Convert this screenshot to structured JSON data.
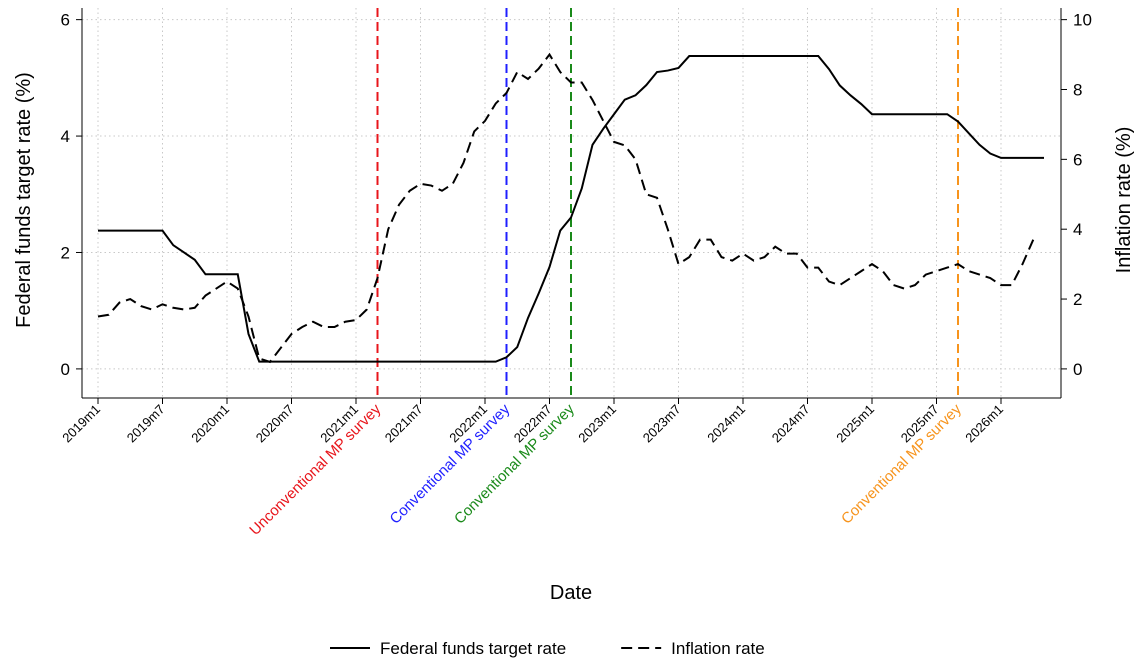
{
  "chart_data": {
    "type": "line",
    "y_label": "Federal funds target rate (%)",
    "y2_label": "Inflation rate (%)",
    "x_label": "Date",
    "categories": [
      "2019m1",
      null,
      null,
      null,
      null,
      null,
      "2019m7",
      null,
      null,
      null,
      null,
      null,
      "2020m1",
      null,
      null,
      null,
      null,
      null,
      "2020m7",
      null,
      null,
      null,
      null,
      null,
      "2021m1",
      null,
      null,
      null,
      null,
      null,
      "2021m7",
      null,
      null,
      null,
      null,
      null,
      "2022m1",
      null,
      null,
      null,
      null,
      null,
      "2022m7",
      null,
      null,
      null,
      null,
      null,
      "2023m1",
      null,
      null,
      null,
      null,
      null,
      "2023m7",
      null,
      null,
      null,
      null,
      null,
      "2024m1",
      null,
      null,
      null,
      null,
      null,
      "2024m7",
      null,
      null,
      null,
      null,
      null,
      "2025m1",
      null,
      null,
      null,
      null,
      null,
      "2025m7",
      null,
      null,
      null,
      null,
      null,
      "2026m1",
      null,
      null,
      null,
      null
    ],
    "series": [
      {
        "name": "Federal funds target rate",
        "color": "#000000",
        "style": "solid",
        "axis": "y",
        "values": [
          2.375,
          2.375,
          2.375,
          2.375,
          2.375,
          2.375,
          2.375,
          2.125,
          2.0,
          1.875,
          1.625,
          1.625,
          1.625,
          1.625,
          0.6,
          0.125,
          0.125,
          0.125,
          0.125,
          0.125,
          0.125,
          0.125,
          0.125,
          0.125,
          0.125,
          0.125,
          0.125,
          0.125,
          0.125,
          0.125,
          0.125,
          0.125,
          0.125,
          0.125,
          0.125,
          0.125,
          0.125,
          0.125,
          0.2,
          0.375,
          0.875,
          1.3,
          1.75,
          2.375,
          2.6,
          3.1,
          3.85,
          4.125,
          4.375,
          4.625,
          4.7,
          4.875,
          5.1,
          5.125,
          5.17,
          5.375,
          5.375,
          5.375,
          5.375,
          5.375,
          5.375,
          5.375,
          5.375,
          5.375,
          5.375,
          5.375,
          5.375,
          5.375,
          5.15,
          4.87,
          4.7,
          4.55,
          4.375,
          4.375,
          4.375,
          4.375,
          4.375,
          4.375,
          4.375,
          4.375,
          4.25,
          4.05,
          3.85,
          3.7,
          3.625,
          3.625,
          3.625,
          3.625,
          3.625
        ]
      },
      {
        "name": "Inflation rate",
        "color": "#000000",
        "style": "dashed",
        "axis": "y2",
        "values": [
          1.5,
          1.55,
          1.9,
          2.0,
          1.8,
          1.7,
          1.85,
          1.75,
          1.7,
          1.75,
          2.1,
          2.3,
          2.5,
          2.3,
          1.5,
          0.3,
          0.2,
          0.6,
          1.0,
          1.2,
          1.35,
          1.2,
          1.2,
          1.35,
          1.4,
          1.7,
          2.6,
          4.0,
          4.7,
          5.1,
          5.3,
          5.25,
          5.1,
          5.3,
          5.9,
          6.8,
          7.1,
          7.6,
          7.9,
          8.5,
          8.3,
          8.6,
          9.0,
          8.5,
          8.2,
          8.2,
          7.7,
          7.1,
          6.5,
          6.4,
          6.0,
          5.0,
          4.9,
          4.0,
          3.0,
          3.2,
          3.7,
          3.7,
          3.2,
          3.1,
          3.3,
          3.1,
          3.2,
          3.5,
          3.3,
          3.3,
          2.9,
          2.9,
          2.5,
          2.4,
          2.6,
          2.8,
          3.0,
          2.8,
          2.4,
          2.3,
          2.4,
          2.7,
          2.8,
          2.9,
          3.0,
          2.8,
          2.7,
          2.6,
          2.4,
          2.4,
          3.0,
          3.7,
          null
        ]
      }
    ],
    "ylim": [
      -0.5,
      6.2
    ],
    "yticks": [
      0,
      2,
      4,
      6
    ],
    "y2lim": [
      -0.8333,
      10.3333
    ],
    "y2ticks": [
      0,
      2,
      4,
      6,
      8,
      10
    ],
    "grid": true,
    "annotations": [
      {
        "x": 26,
        "label": "Unconventional MP survey",
        "color": "#e8151b"
      },
      {
        "x": 38,
        "label": "Conventional MP survey",
        "color": "#1f1fff"
      },
      {
        "x": 44,
        "label": "Conventional MP survey",
        "color": "#1a8a1a"
      },
      {
        "x": 80,
        "label": "Conventional MP survey",
        "color": "#f7941d"
      }
    ],
    "legend": "bottom"
  }
}
